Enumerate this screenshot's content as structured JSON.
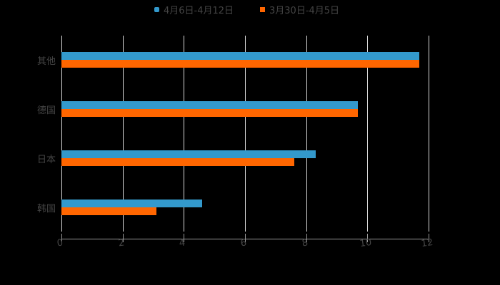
{
  "chart_data": {
    "type": "bar",
    "orientation": "horizontal",
    "title": "",
    "xlabel": "",
    "ylabel": "",
    "categories": [
      "其他",
      "德国",
      "日本",
      "韩国"
    ],
    "series": [
      {
        "name": "4月6日-4月12日",
        "color": "#3399cc",
        "marker": "circle",
        "values": [
          11.7,
          9.7,
          8.3,
          4.6
        ]
      },
      {
        "name": "3月30日-4月5日",
        "color": "#ff6600",
        "marker": "square",
        "values": [
          11.7,
          9.7,
          7.6,
          3.1
        ]
      }
    ],
    "xlim": [
      0,
      12
    ],
    "xticks": [
      "0",
      "2",
      "4",
      "6",
      "8",
      "10",
      "12"
    ],
    "grid": "vertical",
    "legend_position": "top",
    "background": "#000000"
  },
  "legend": {
    "items": [
      {
        "label": "4月6日-4月12日",
        "color": "#3399cc"
      },
      {
        "label": "3月30日-4月5日",
        "color": "#ff6600"
      }
    ]
  }
}
